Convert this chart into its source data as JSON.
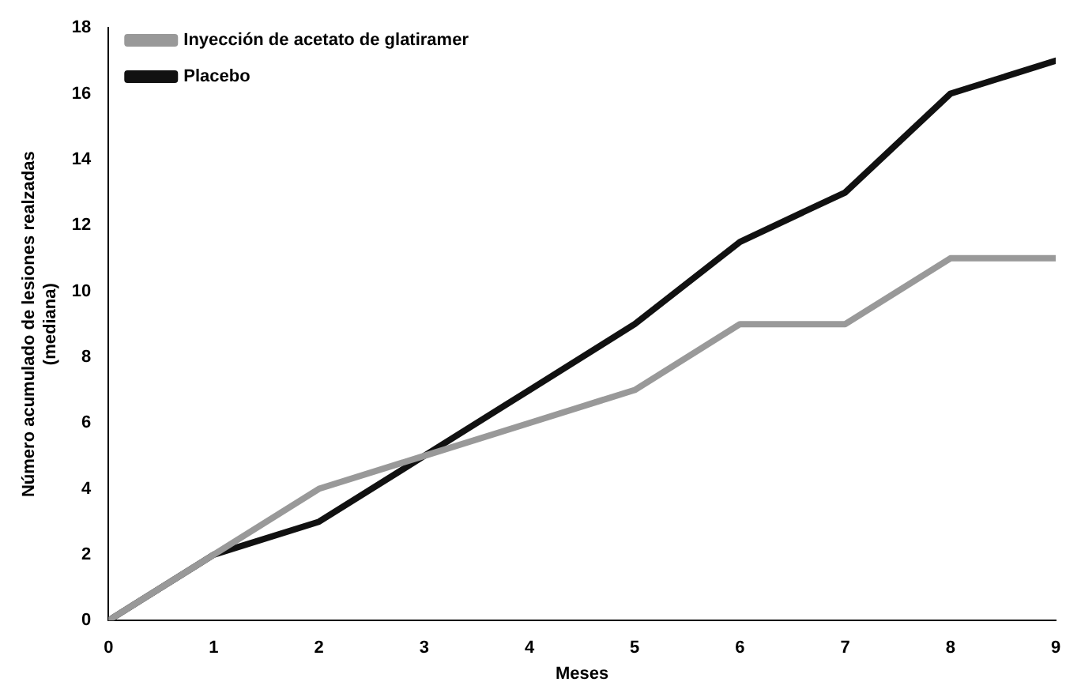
{
  "chart_data": {
    "type": "line",
    "xlabel": "Meses",
    "ylabel": "Número acumulado de lesiones realzadas\n(mediana)",
    "x": [
      0,
      1,
      2,
      3,
      4,
      5,
      6,
      7,
      8,
      9
    ],
    "series": [
      {
        "name": "Inyección de acetato de glatiramer",
        "color": "#999999",
        "values": [
          0,
          2,
          4,
          5,
          6,
          7,
          9,
          9,
          11,
          11
        ]
      },
      {
        "name": "Placebo",
        "color": "#111111",
        "values": [
          0,
          2,
          3,
          5,
          7,
          9,
          11.5,
          13,
          16,
          17
        ]
      }
    ],
    "xlim": [
      0,
      9
    ],
    "xticks": [
      0,
      1,
      2,
      3,
      4,
      5,
      6,
      7,
      8,
      9
    ],
    "ylim": [
      0,
      18
    ],
    "yticks": [
      0,
      2,
      4,
      6,
      8,
      10,
      12,
      14,
      16,
      18
    ],
    "grid": false,
    "legend": "top left",
    "marker": "none",
    "line_style": "solid"
  }
}
